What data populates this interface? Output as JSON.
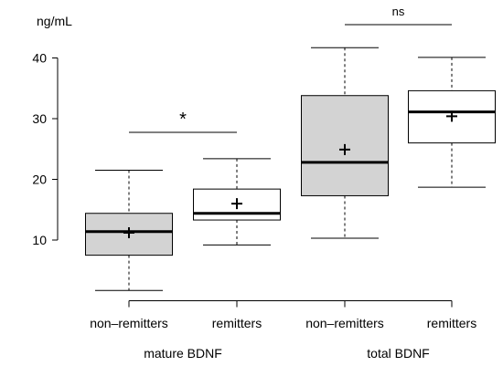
{
  "chart_data": {
    "type": "box",
    "ylabel": "ng/mL",
    "ylim": [
      0,
      45
    ],
    "yticks": [
      10,
      20,
      30,
      40
    ],
    "categories": [
      "non–remitters",
      "remitters",
      "non–remitters",
      "remitters"
    ],
    "groups": [
      {
        "label": "mature BDNF",
        "members": [
          0,
          1
        ]
      },
      {
        "label": "total BDNF",
        "members": [
          2,
          3
        ]
      }
    ],
    "boxes": [
      {
        "category": "non–remitters",
        "group": "mature BDNF",
        "whisker_low": 1.7,
        "q1": 7.5,
        "median": 11.4,
        "q3": 14.4,
        "whisker_high": 21.5,
        "mean": 11.2,
        "fill": "#d3d3d3"
      },
      {
        "category": "remitters",
        "group": "mature BDNF",
        "whisker_low": 9.2,
        "q1": 13.3,
        "median": 14.4,
        "q3": 18.4,
        "whisker_high": 23.4,
        "mean": 16.0,
        "fill": "#ffffff"
      },
      {
        "category": "non–remitters",
        "group": "total BDNF",
        "whisker_low": 10.3,
        "q1": 17.3,
        "median": 22.8,
        "q3": 33.8,
        "whisker_high": 41.7,
        "mean": 24.9,
        "fill": "#d3d3d3"
      },
      {
        "category": "remitters",
        "group": "total BDNF",
        "whisker_low": 18.7,
        "q1": 26.0,
        "median": 31.1,
        "q3": 34.6,
        "whisker_high": 40.1,
        "mean": 30.4,
        "fill": "#ffffff"
      }
    ],
    "annotations": [
      {
        "text": "*",
        "between": [
          0,
          1
        ]
      },
      {
        "text": "ns",
        "between": [
          2,
          3
        ]
      }
    ]
  }
}
